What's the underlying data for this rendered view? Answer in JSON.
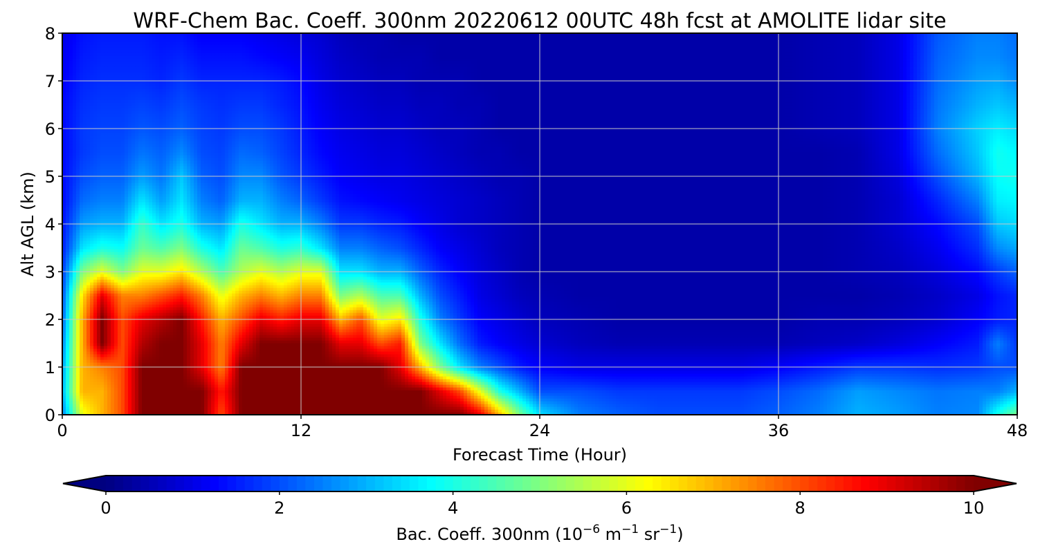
{
  "chart_data": {
    "type": "heatmap",
    "title": "WRF-Chem Bac. Coeff. 300nm  20220612 00UTC 48h fcst at AMOLITE lidar site",
    "xlabel": "Forecast Time (Hour)",
    "ylabel": "Alt AGL (km)",
    "xlim": [
      0,
      48
    ],
    "ylim": [
      0,
      8
    ],
    "xticks": [
      0,
      12,
      24,
      36,
      48
    ],
    "yticks": [
      0,
      1,
      2,
      3,
      4,
      5,
      6,
      7,
      8
    ],
    "grid": true,
    "colormap": "jet",
    "colorbar": {
      "label_main": "Bac. Coeff. 300nm  (10",
      "label_exp1": "−6",
      "label_mid": " m",
      "label_exp2": "−1",
      "label_mid2": " sr",
      "label_exp3": "−1",
      "label_end": ")",
      "range": [
        0,
        10
      ],
      "ticks": [
        0,
        2,
        4,
        6,
        8,
        10
      ],
      "extend": "both",
      "orientation": "horizontal"
    },
    "x": [
      0,
      1,
      2,
      3,
      4,
      5,
      6,
      7,
      8,
      9,
      10,
      11,
      12,
      13,
      14,
      15,
      16,
      17,
      18,
      19,
      20,
      21,
      22,
      23,
      24,
      26,
      28,
      30,
      32,
      34,
      36,
      38,
      40,
      42,
      44,
      46,
      47,
      48
    ],
    "y": [
      0,
      0.5,
      1,
      1.5,
      2,
      2.5,
      3,
      3.5,
      4,
      4.5,
      5,
      5.5,
      6,
      6.5,
      7,
      7.5,
      8
    ],
    "values": [
      [
        2.5,
        6,
        7,
        8,
        10,
        10,
        10,
        10,
        8,
        10,
        10,
        10,
        10,
        10,
        10,
        10,
        10,
        10,
        10,
        10,
        10,
        9,
        7,
        5,
        3.5,
        2.5,
        2.2,
        2,
        2,
        2,
        2.2,
        2.5,
        3,
        2.8,
        2.5,
        2.6,
        4,
        5
      ],
      [
        3,
        7,
        7,
        8,
        10,
        10,
        10,
        10,
        8.5,
        10,
        10,
        10,
        10,
        10,
        10,
        10,
        10,
        10,
        10,
        9,
        8,
        6,
        4,
        3,
        2,
        2,
        1.8,
        1.8,
        1.8,
        1.8,
        2,
        2.3,
        2.8,
        2.6,
        2.4,
        2.5,
        2.5,
        3
      ],
      [
        2.8,
        7,
        7.5,
        8,
        10,
        10,
        10,
        9,
        7.5,
        10,
        10,
        10,
        10,
        10,
        10,
        10,
        10,
        9,
        7,
        5,
        3.5,
        2.5,
        2,
        1.5,
        1.2,
        1,
        1,
        1,
        1,
        1,
        1.2,
        1.5,
        1.8,
        1.8,
        1.7,
        1.8,
        2,
        2
      ],
      [
        2.5,
        7,
        10,
        8,
        9.5,
        10,
        10,
        9,
        7.5,
        9,
        10,
        10,
        10,
        10,
        9,
        9,
        8,
        8.5,
        5,
        3.5,
        2.3,
        1.5,
        1.2,
        1,
        0.8,
        0.6,
        0.5,
        0.5,
        0.5,
        0.5,
        0.5,
        0.6,
        0.7,
        0.9,
        1.2,
        1.5,
        2.5,
        1.8
      ],
      [
        2.2,
        7,
        10,
        8,
        9,
        9.5,
        10,
        8.5,
        7,
        8,
        9,
        8.5,
        9,
        9,
        7,
        8,
        6,
        6.5,
        4,
        2.5,
        1.8,
        1.2,
        1,
        0.8,
        0.6,
        0.5,
        0.4,
        0.4,
        0.4,
        0.4,
        0.4,
        0.5,
        0.5,
        0.6,
        0.8,
        1.2,
        1.5,
        1.6
      ],
      [
        2,
        6.5,
        9,
        7.5,
        7.5,
        8,
        8.5,
        7.5,
        6,
        7,
        7.5,
        7,
        7.5,
        7.5,
        5,
        5.5,
        4.5,
        4.5,
        3,
        2,
        1.5,
        1,
        0.8,
        0.6,
        0.5,
        0.4,
        0.4,
        0.4,
        0.4,
        0.4,
        0.4,
        0.4,
        0.4,
        0.5,
        0.7,
        1,
        1.4,
        1.6
      ],
      [
        1.8,
        5,
        6,
        5,
        6,
        6,
        6.5,
        5.5,
        4.5,
        5.5,
        6,
        5.5,
        6,
        6,
        3.5,
        3.5,
        3,
        3,
        2.2,
        1.6,
        1.2,
        0.9,
        0.7,
        0.5,
        0.4,
        0.4,
        0.4,
        0.4,
        0.4,
        0.4,
        0.4,
        0.4,
        0.5,
        0.6,
        0.9,
        1.3,
        1.8,
        2.2
      ],
      [
        1.5,
        3.5,
        4,
        3.8,
        4.8,
        4.5,
        5,
        4,
        3.5,
        4.8,
        4.5,
        4,
        4.2,
        3.5,
        2.5,
        2.5,
        2.2,
        2,
        1.6,
        1.2,
        1,
        0.8,
        0.6,
        0.5,
        0.4,
        0.4,
        0.4,
        0.4,
        0.4,
        0.4,
        0.4,
        0.4,
        0.5,
        0.7,
        1.1,
        1.7,
        2.6,
        2.9
      ],
      [
        1.4,
        2.8,
        3,
        3,
        4.3,
        3.5,
        4,
        3,
        2.8,
        4,
        3.5,
        3,
        3,
        2.5,
        1.8,
        1.8,
        1.6,
        1.5,
        1.2,
        1,
        0.8,
        0.7,
        0.6,
        0.5,
        0.4,
        0.4,
        0.4,
        0.4,
        0.4,
        0.4,
        0.4,
        0.4,
        0.5,
        0.8,
        1.3,
        2,
        3.2,
        3.4
      ],
      [
        1.3,
        2.3,
        2.5,
        2.5,
        3.5,
        2.8,
        3.5,
        2.5,
        2.2,
        3,
        3,
        2.5,
        2.2,
        1.8,
        1.4,
        1.3,
        1.2,
        1.1,
        1,
        0.9,
        0.8,
        0.7,
        0.6,
        0.5,
        0.4,
        0.4,
        0.4,
        0.4,
        0.4,
        0.4,
        0.4,
        0.4,
        0.5,
        0.8,
        1.6,
        2.5,
        3.6,
        3.7
      ],
      [
        1.3,
        2,
        2.2,
        2.2,
        2.8,
        2.4,
        3.2,
        2.2,
        2,
        2.6,
        2.6,
        2.1,
        1.8,
        1.5,
        1.2,
        1.1,
        1,
        1,
        0.9,
        0.8,
        0.7,
        0.6,
        0.5,
        0.5,
        0.4,
        0.4,
        0.4,
        0.4,
        0.4,
        0.4,
        0.4,
        0.4,
        0.5,
        0.9,
        2,
        3,
        3.8,
        3.9
      ],
      [
        1.3,
        1.8,
        2,
        2,
        2.4,
        2.2,
        2.6,
        2,
        1.9,
        2.3,
        2.2,
        1.9,
        1.6,
        1.3,
        1.1,
        1,
        0.9,
        0.9,
        0.8,
        0.7,
        0.6,
        0.5,
        0.5,
        0.4,
        0.4,
        0.4,
        0.4,
        0.4,
        0.4,
        0.4,
        0.4,
        0.4,
        0.5,
        1,
        2.3,
        3.2,
        3.9,
        3.7
      ],
      [
        1.3,
        1.8,
        1.9,
        1.9,
        2.1,
        2,
        2.2,
        1.9,
        1.8,
        2,
        2,
        1.8,
        1.5,
        1.2,
        1,
        0.9,
        0.8,
        0.8,
        0.7,
        0.6,
        0.6,
        0.5,
        0.4,
        0.4,
        0.4,
        0.4,
        0.4,
        0.4,
        0.4,
        0.4,
        0.4,
        0.5,
        0.6,
        1,
        2.5,
        3.3,
        3.6,
        3.4
      ],
      [
        1.3,
        1.7,
        1.8,
        1.8,
        1.9,
        1.8,
        2,
        1.8,
        1.7,
        1.8,
        1.8,
        1.6,
        1.4,
        1.1,
        0.9,
        0.8,
        0.7,
        0.7,
        0.6,
        0.6,
        0.5,
        0.5,
        0.4,
        0.4,
        0.4,
        0.4,
        0.4,
        0.4,
        0.4,
        0.4,
        0.4,
        0.5,
        0.6,
        1,
        2.4,
        3,
        3.2,
        3
      ],
      [
        1.2,
        1.6,
        1.7,
        1.7,
        1.7,
        1.6,
        1.8,
        1.6,
        1.6,
        1.6,
        1.6,
        1.5,
        1.3,
        1,
        0.8,
        0.7,
        0.6,
        0.6,
        0.5,
        0.5,
        0.5,
        0.4,
        0.4,
        0.4,
        0.4,
        0.4,
        0.4,
        0.4,
        0.4,
        0.4,
        0.4,
        0.5,
        0.6,
        1,
        2.3,
        2.8,
        2.9,
        2.6
      ],
      [
        1.1,
        1.5,
        1.6,
        1.6,
        1.6,
        1.5,
        1.6,
        1.4,
        1.4,
        1.4,
        1.3,
        1.2,
        1.1,
        0.9,
        0.7,
        0.6,
        0.5,
        0.5,
        0.5,
        0.4,
        0.4,
        0.4,
        0.4,
        0.4,
        0.4,
        0.4,
        0.4,
        0.4,
        0.4,
        0.4,
        0.4,
        0.5,
        0.6,
        1,
        2.2,
        2.6,
        2.6,
        2.4
      ],
      [
        1,
        1.4,
        1.5,
        1.5,
        1.5,
        1.4,
        1.4,
        1.2,
        1.2,
        1.2,
        1.1,
        1,
        0.9,
        0.8,
        0.6,
        0.5,
        0.5,
        0.4,
        0.4,
        0.4,
        0.4,
        0.4,
        0.4,
        0.4,
        0.4,
        0.4,
        0.4,
        0.4,
        0.4,
        0.4,
        0.4,
        0.5,
        0.6,
        1,
        2.1,
        2.5,
        2.5,
        2.3
      ]
    ]
  }
}
